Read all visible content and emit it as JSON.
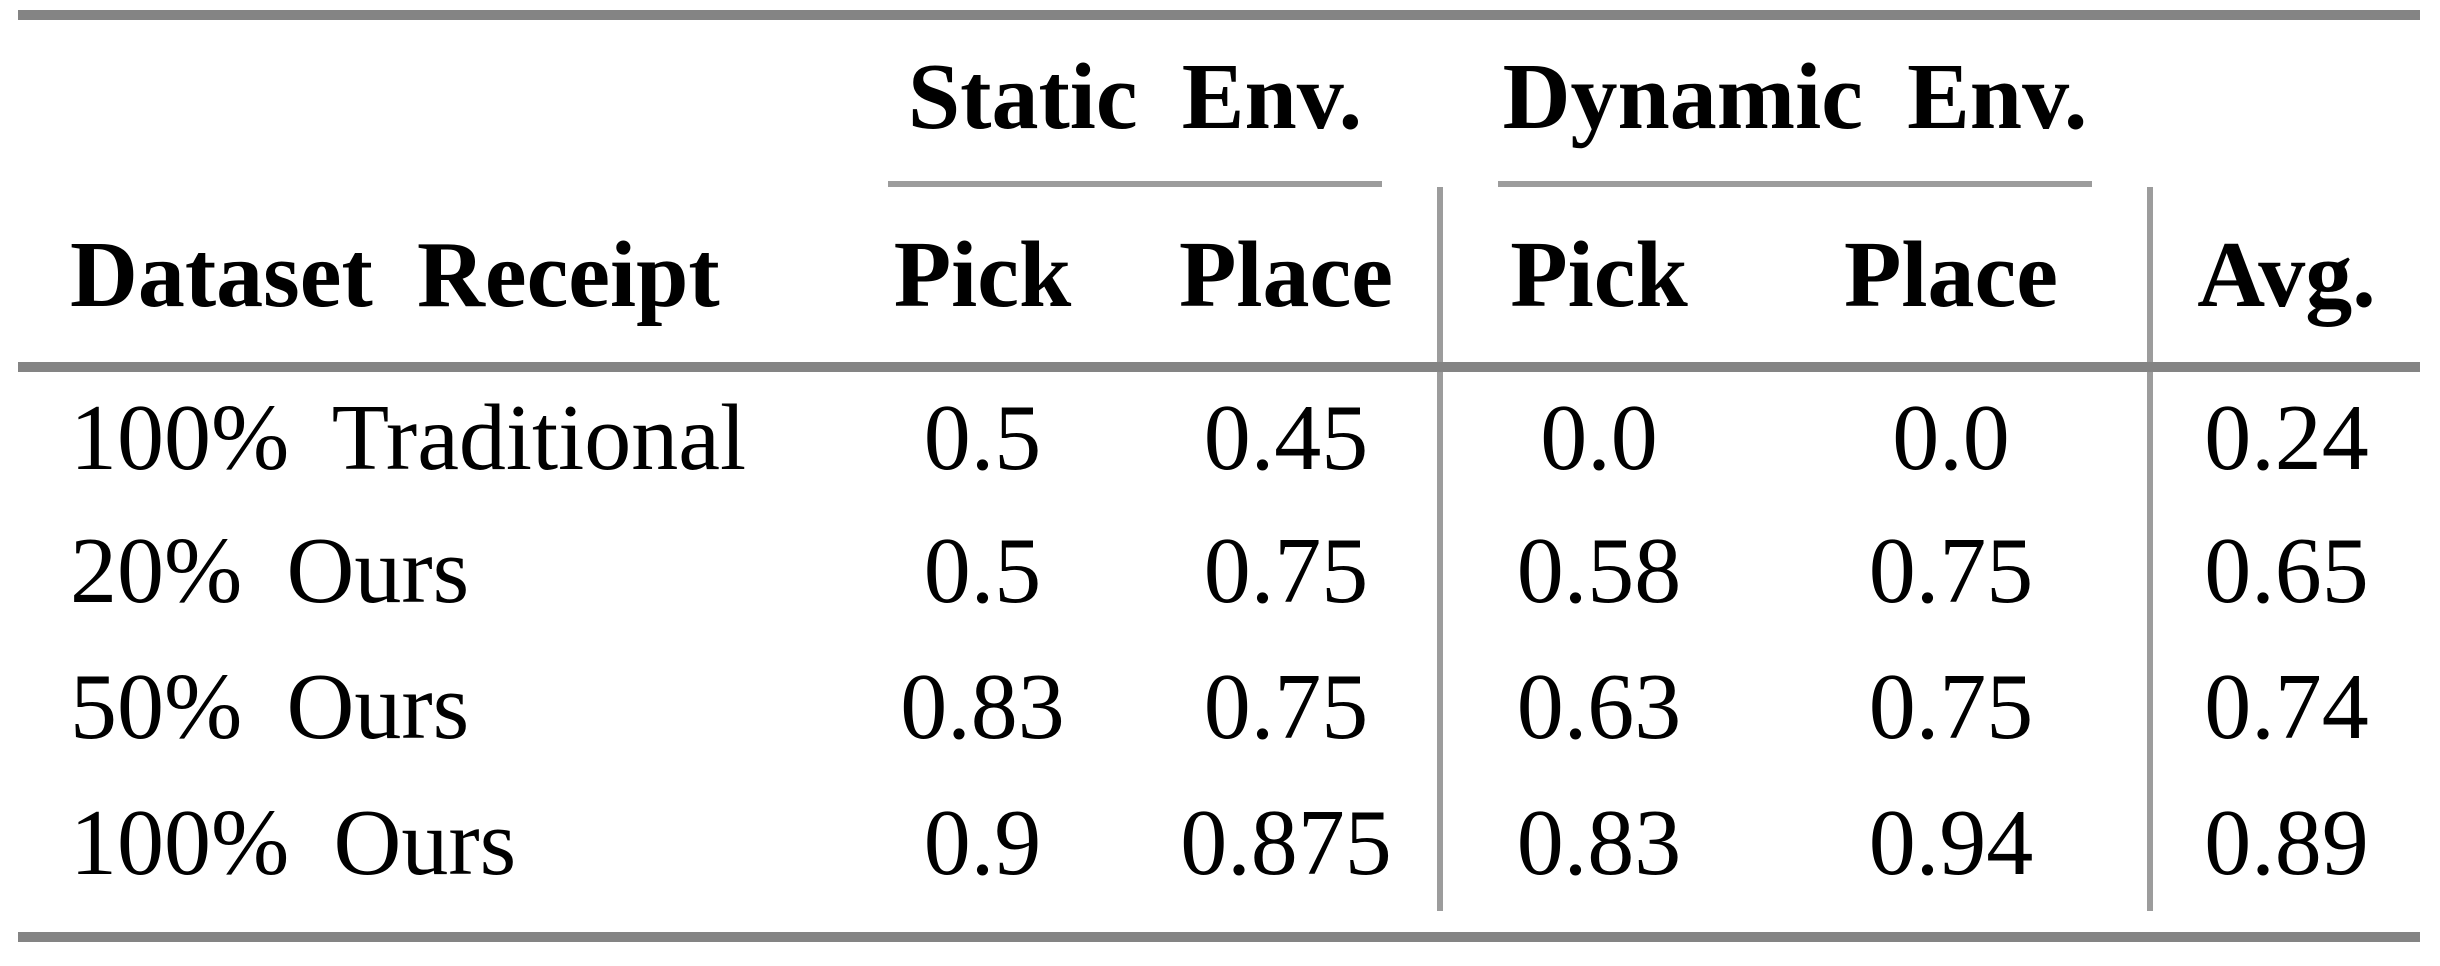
{
  "table": {
    "groups": [
      "Static Env.",
      "Dynamic Env."
    ],
    "columns": [
      "Dataset Receipt",
      "Pick",
      "Place",
      "Pick",
      "Place",
      "Avg."
    ],
    "rows": [
      {
        "label": "100% Traditional",
        "values": [
          "0.5",
          "0.45",
          "0.0",
          "0.0",
          "0.24"
        ]
      },
      {
        "label": "20% Ours",
        "values": [
          "0.5",
          "0.75",
          "0.58",
          "0.75",
          "0.65"
        ]
      },
      {
        "label": "50% Ours",
        "values": [
          "0.83",
          "0.75",
          "0.63",
          "0.75",
          "0.74"
        ]
      },
      {
        "label": "100% Ours",
        "values": [
          "0.9",
          "0.875",
          "0.83",
          "0.94",
          "0.89"
        ]
      }
    ]
  },
  "chart_data": {
    "type": "table",
    "columns": [
      "Dataset Receipt",
      "Static Env. Pick",
      "Static Env. Place",
      "Dynamic Env. Pick",
      "Dynamic Env. Place",
      "Avg."
    ],
    "rows": [
      [
        "100% Traditional",
        0.5,
        0.45,
        0.0,
        0.0,
        0.24
      ],
      [
        "20% Ours",
        0.5,
        0.75,
        0.58,
        0.75,
        0.65
      ],
      [
        "50% Ours",
        0.83,
        0.75,
        0.63,
        0.75,
        0.74
      ],
      [
        "100% Ours",
        0.9,
        0.875,
        0.83,
        0.94,
        0.89
      ]
    ]
  },
  "colors": {
    "rule_thick": "#848484",
    "rule_thin": "#9c9c9c",
    "text": "#000000",
    "background": "#ffffff"
  }
}
